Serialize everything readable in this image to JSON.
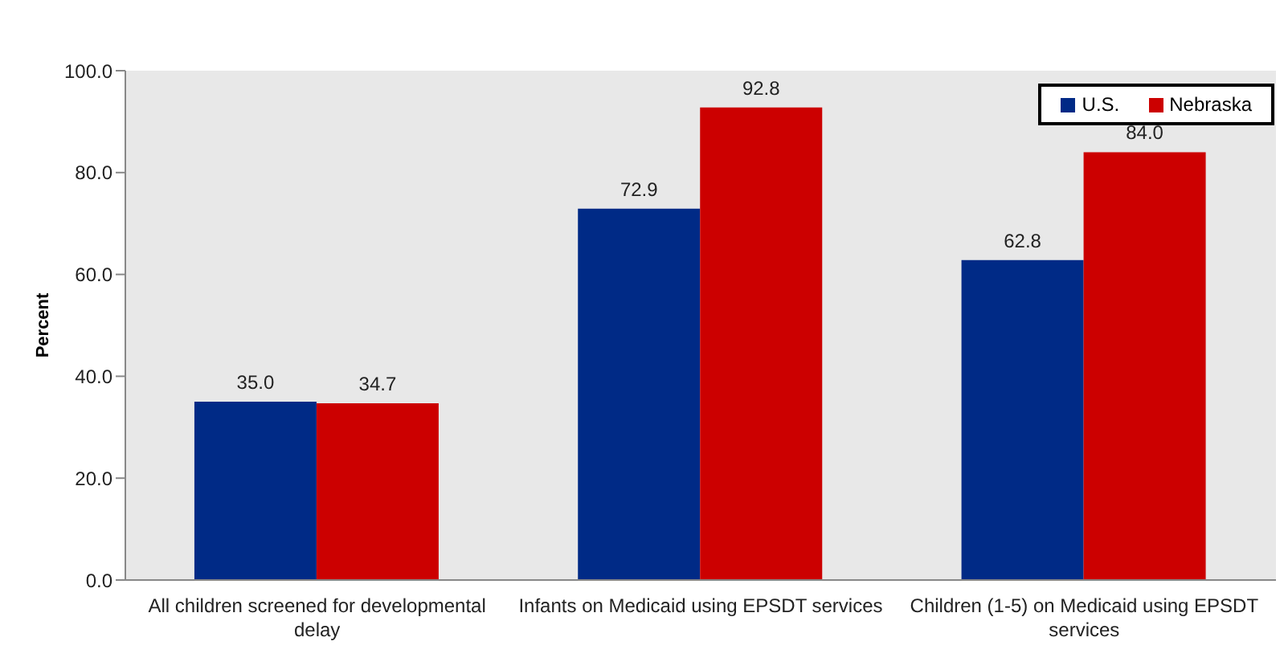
{
  "chart_data": {
    "type": "bar",
    "ylabel": "Percent",
    "categories": [
      "All children screened for developmental delay",
      "Infants on Medicaid using EPSDT services",
      "Children (1-5) on Medicaid using EPSDT services"
    ],
    "series": [
      {
        "name": "U.S.",
        "color": "#002a86",
        "values": [
          35.0,
          72.9,
          62.8
        ],
        "value_labels": [
          "35.0",
          "72.9",
          "62.8"
        ]
      },
      {
        "name": "Nebraska",
        "color": "#cc0000",
        "values": [
          34.7,
          92.8,
          84.0
        ],
        "value_labels": [
          "34.7",
          "92.8",
          "84.0"
        ]
      }
    ],
    "ylim": [
      0,
      100
    ],
    "yticks": [
      {
        "value": 0,
        "label": "0.0"
      },
      {
        "value": 20,
        "label": "20.0"
      },
      {
        "value": 40,
        "label": "40.0"
      },
      {
        "value": 60,
        "label": "60.0"
      },
      {
        "value": 80,
        "label": "80.0"
      },
      {
        "value": 100,
        "label": "100.0"
      }
    ],
    "grid": false,
    "legend": "top right"
  }
}
